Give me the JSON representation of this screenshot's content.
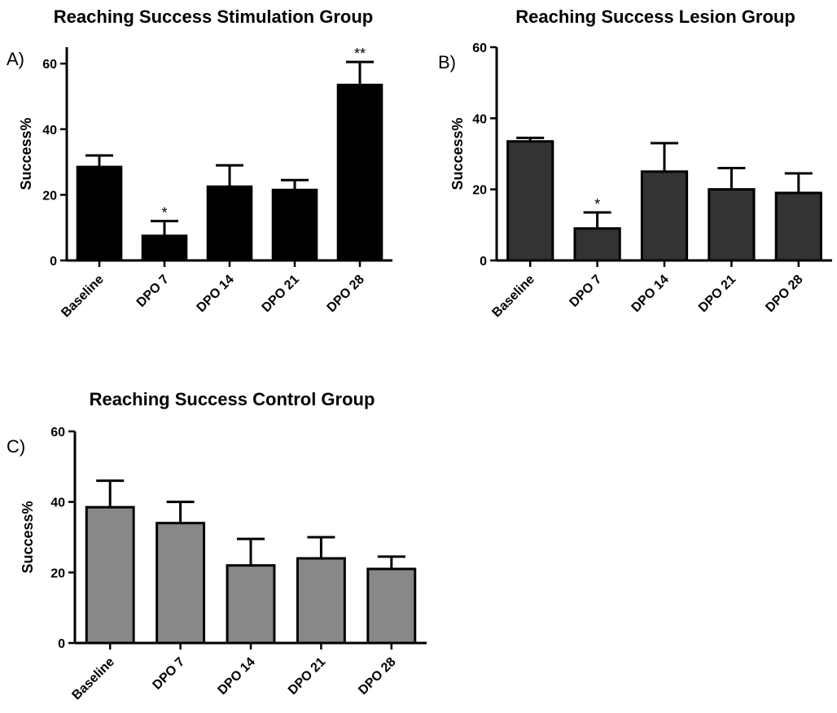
{
  "chart_data": [
    {
      "type": "bar",
      "panel_letter": "A)",
      "title": "Reaching Success Stimulation Group",
      "xlabel": "",
      "ylabel": "Success%",
      "ylim": [
        0,
        65
      ],
      "yticks": [
        0,
        20,
        40,
        60
      ],
      "categories": [
        "Baseline",
        "DPO 7",
        "DPO 14",
        "DPO 21",
        "DPO 28"
      ],
      "values": [
        28.5,
        7.5,
        22.5,
        21.5,
        53.5
      ],
      "error": [
        3.5,
        4.5,
        6.5,
        3.0,
        7.0
      ],
      "significance": [
        "",
        "*",
        "",
        "",
        "**"
      ],
      "bar_color": "#000000",
      "grid": false
    },
    {
      "type": "bar",
      "panel_letter": "B)",
      "title": "Reaching Success Lesion Group",
      "xlabel": "",
      "ylabel": "Success%",
      "ylim": [
        0,
        60
      ],
      "yticks": [
        0,
        20,
        40,
        60
      ],
      "categories": [
        "Baseline",
        "DPO 7",
        "DPO 14",
        "DPO 21",
        "DPO 28"
      ],
      "values": [
        33.5,
        9.0,
        25.0,
        20.0,
        19.0
      ],
      "error": [
        1.0,
        4.5,
        8.0,
        6.0,
        5.5
      ],
      "significance": [
        "",
        "*",
        "",
        "",
        ""
      ],
      "bar_color": "#333333",
      "grid": false
    },
    {
      "type": "bar",
      "panel_letter": "C)",
      "title": "Reaching Success Control Group",
      "xlabel": "",
      "ylabel": "Success%",
      "ylim": [
        0,
        60
      ],
      "yticks": [
        0,
        20,
        40,
        60
      ],
      "categories": [
        "Baseline",
        "DPO 7",
        "DPO 14",
        "DPO 21",
        "DPO 28"
      ],
      "values": [
        38.5,
        34.0,
        22.0,
        24.0,
        21.0
      ],
      "error": [
        7.5,
        6.0,
        7.5,
        6.0,
        3.5
      ],
      "significance": [
        "",
        "",
        "",
        "",
        ""
      ],
      "bar_color": "#888888",
      "grid": false
    }
  ]
}
